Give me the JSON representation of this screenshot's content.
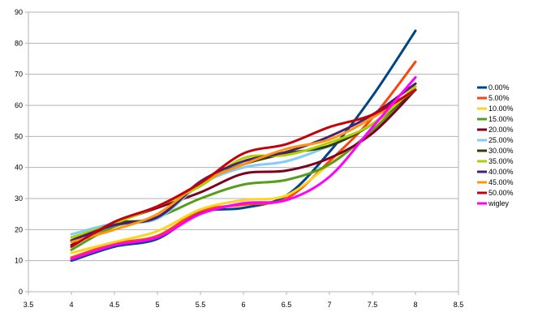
{
  "chart_data": {
    "type": "line",
    "title": "",
    "xlabel": "",
    "ylabel": "",
    "xlim": [
      3.5,
      8.5
    ],
    "ylim": [
      0,
      90
    ],
    "xticks": [
      "3.5",
      "4",
      "4.5",
      "5",
      "5.5",
      "6",
      "6.5",
      "7",
      "7.5",
      "8",
      "8.5"
    ],
    "yticks": [
      "0",
      "10",
      "20",
      "30",
      "40",
      "50",
      "60",
      "70",
      "80",
      "90"
    ],
    "grid": "horizontal",
    "legend_position": "right",
    "x": [
      4,
      4.5,
      5,
      5.5,
      6,
      6.5,
      7,
      7.5,
      8
    ],
    "series": [
      {
        "name": "0.00%",
        "color": "#004586",
        "values": [
          10,
          14.5,
          17,
          25.5,
          27,
          31,
          45,
          63,
          84
        ]
      },
      {
        "name": "5.00%",
        "color": "#ff420e",
        "values": [
          11,
          15.5,
          18,
          26,
          28,
          30,
          42,
          56,
          74
        ]
      },
      {
        "name": "10.00%",
        "color": "#ffd320",
        "values": [
          12.5,
          16,
          19.5,
          26.5,
          29.5,
          31,
          41,
          52,
          67
        ]
      },
      {
        "name": "15.00%",
        "color": "#579d1c",
        "values": [
          13.5,
          21,
          24,
          30,
          34.5,
          36,
          41,
          52,
          65
        ]
      },
      {
        "name": "20.00%",
        "color": "#7e0021",
        "values": [
          15,
          22,
          27,
          32,
          38,
          39,
          43,
          51,
          65
        ]
      },
      {
        "name": "25.00%",
        "color": "#83caff",
        "values": [
          18.5,
          22,
          23.5,
          34.5,
          40,
          42,
          47,
          54,
          66
        ]
      },
      {
        "name": "30.00%",
        "color": "#314004",
        "values": [
          16.5,
          22,
          24,
          35,
          41,
          44.5,
          47,
          54,
          65
        ]
      },
      {
        "name": "35.00%",
        "color": "#aecf00",
        "values": [
          17.5,
          22,
          27.5,
          34,
          43,
          44,
          48,
          54,
          66
        ]
      },
      {
        "name": "40.00%",
        "color": "#4b1f6f",
        "values": [
          16.5,
          21.5,
          24,
          35.5,
          42,
          45,
          50,
          57,
          67
        ]
      },
      {
        "name": "45.00%",
        "color": "#ff950e",
        "values": [
          16,
          20,
          25,
          35,
          41,
          46,
          49,
          56,
          65
        ]
      },
      {
        "name": "50.00%",
        "color": "#c5000b",
        "values": [
          14.5,
          22.5,
          27.5,
          35,
          44.5,
          47.5,
          53,
          57,
          65
        ]
      },
      {
        "name": "wigley",
        "color": "#ff00ff",
        "values": [
          10.5,
          15,
          17.5,
          25,
          28.5,
          29.5,
          37,
          53,
          69
        ]
      }
    ]
  }
}
